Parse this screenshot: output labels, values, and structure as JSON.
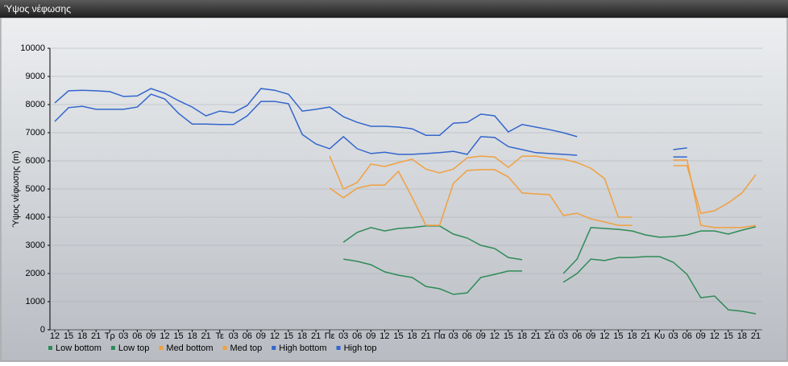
{
  "chart_data": {
    "type": "line",
    "title": "Ύψος νέφωσης",
    "y_label": "Ύψος νέφωσης (m)",
    "categories": [
      "12",
      "15",
      "18",
      "21",
      "Τρ",
      "03",
      "06",
      "09",
      "12",
      "15",
      "18",
      "21",
      "Τε",
      "03",
      "06",
      "09",
      "12",
      "15",
      "18",
      "21",
      "Πε",
      "03",
      "06",
      "09",
      "12",
      "15",
      "18",
      "21",
      "Πα",
      "03",
      "06",
      "09",
      "12",
      "15",
      "18",
      "21",
      "Σά",
      "03",
      "06",
      "09",
      "12",
      "15",
      "18",
      "21",
      "Κυ",
      "03",
      "06",
      "09",
      "12",
      "15",
      "18",
      "21"
    ],
    "ylim": [
      0,
      10000
    ],
    "yticks": [
      0,
      1000,
      2000,
      3000,
      4000,
      5000,
      6000,
      7000,
      8000,
      9000,
      10000
    ],
    "grid": true,
    "series": [
      {
        "name": "Low bottom",
        "color": "#2e8b57",
        "values": [
          null,
          null,
          null,
          null,
          null,
          null,
          null,
          null,
          null,
          null,
          null,
          null,
          null,
          null,
          null,
          null,
          null,
          null,
          null,
          null,
          null,
          2510,
          2430,
          2310,
          2060,
          1940,
          1860,
          1540,
          1460,
          1260,
          1310,
          1860,
          1970,
          2090,
          2090,
          null,
          null,
          1690,
          2000,
          2510,
          2460,
          2570,
          2570,
          2600,
          2600,
          2400,
          1970,
          1140,
          1200,
          710,
          660,
          570
        ]
      },
      {
        "name": "Low top",
        "color": "#2e8b57",
        "values": [
          null,
          null,
          null,
          null,
          null,
          null,
          null,
          null,
          null,
          null,
          null,
          null,
          null,
          null,
          null,
          null,
          null,
          null,
          null,
          null,
          null,
          3110,
          3460,
          3630,
          3510,
          3600,
          3630,
          3690,
          3690,
          3400,
          3260,
          3000,
          2890,
          2570,
          2490,
          null,
          null,
          2000,
          2510,
          3630,
          3600,
          3570,
          3510,
          3370,
          3290,
          3310,
          3370,
          3510,
          3510,
          3400,
          3540,
          3660
        ]
      },
      {
        "name": "Med bottom",
        "color": "#f0a040",
        "values": [
          null,
          null,
          null,
          null,
          null,
          null,
          null,
          null,
          null,
          null,
          null,
          null,
          null,
          null,
          null,
          null,
          null,
          null,
          null,
          null,
          5030,
          4690,
          5030,
          5140,
          5140,
          5630,
          4710,
          3710,
          3710,
          5200,
          5660,
          5690,
          5690,
          5430,
          4860,
          4830,
          4800,
          4060,
          4140,
          3940,
          3830,
          3710,
          3710,
          null,
          null,
          6030,
          6030,
          3710,
          3630,
          3630,
          3630,
          3710
        ]
      },
      {
        "name": "Med top",
        "color": "#f0a040",
        "values": [
          null,
          null,
          null,
          null,
          null,
          null,
          null,
          null,
          null,
          null,
          null,
          null,
          null,
          null,
          null,
          null,
          null,
          null,
          null,
          null,
          6170,
          5000,
          5230,
          5890,
          5800,
          5940,
          6060,
          5710,
          5570,
          5710,
          6110,
          6170,
          6140,
          5770,
          6170,
          6170,
          6090,
          6060,
          5940,
          5740,
          5370,
          4000,
          4000,
          null,
          null,
          5830,
          5830,
          4140,
          4230,
          4510,
          4860,
          5510
        ]
      },
      {
        "name": "High bottom",
        "color": "#3366cc",
        "values": [
          7400,
          7890,
          7940,
          7830,
          7830,
          7830,
          7910,
          8370,
          8200,
          7690,
          7310,
          7310,
          7290,
          7290,
          7600,
          8110,
          8110,
          8030,
          6940,
          6600,
          6430,
          6860,
          6430,
          6260,
          6310,
          6230,
          6230,
          6260,
          6290,
          6340,
          6230,
          6860,
          6830,
          6510,
          6400,
          6290,
          6260,
          6230,
          6200,
          null,
          null,
          null,
          null,
          null,
          null,
          6140,
          6140,
          null,
          null,
          null,
          null,
          null
        ]
      },
      {
        "name": "High top",
        "color": "#3366cc",
        "values": [
          8060,
          8490,
          8510,
          8490,
          8460,
          8290,
          8310,
          8570,
          8400,
          8140,
          7910,
          7600,
          7770,
          7710,
          7970,
          8570,
          8510,
          8370,
          7770,
          7830,
          7910,
          7570,
          7370,
          7230,
          7230,
          7200,
          7140,
          6910,
          6910,
          7340,
          7370,
          7660,
          7600,
          7030,
          7290,
          7200,
          7110,
          7000,
          6860,
          null,
          null,
          null,
          null,
          null,
          null,
          6400,
          6460,
          null,
          null,
          null,
          null,
          null
        ]
      }
    ]
  }
}
